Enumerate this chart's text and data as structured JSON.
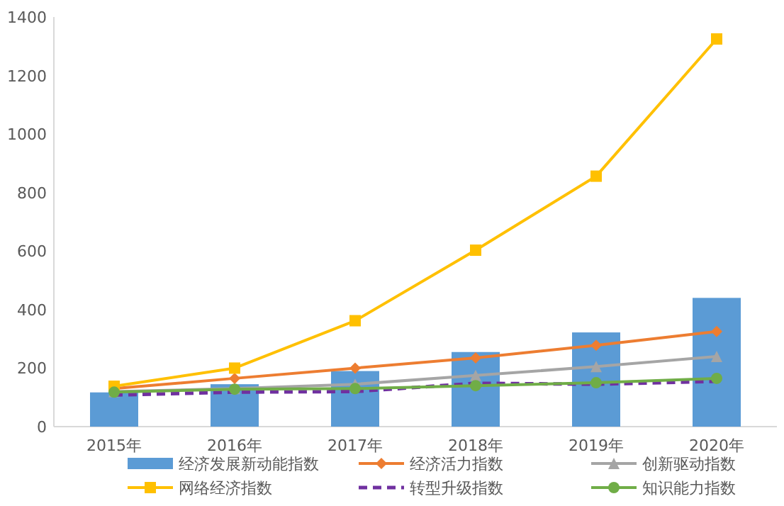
{
  "chart_data": {
    "type": "bar",
    "categories": [
      "2015年",
      "2016年",
      "2017年",
      "2018年",
      "2019年",
      "2020年"
    ],
    "ylim": [
      0,
      1400
    ],
    "yticks": [
      0,
      200,
      400,
      600,
      800,
      1000,
      1200,
      1400
    ],
    "grid": false,
    "legend": "bottom",
    "series": [
      {
        "name": "经济发展新动能指数",
        "color": "#5b9bd5",
        "values": [
          117,
          145,
          190,
          255,
          322,
          440
        ]
      },
      {
        "name": "经济活力指数",
        "type": "line",
        "color": "#ed7d31",
        "marker": "diamond",
        "line_style": "solid",
        "values": [
          130,
          165,
          200,
          235,
          278,
          325
        ]
      },
      {
        "name": "创新驱动指数",
        "type": "line",
        "color": "#a5a5a5",
        "marker": "triangle",
        "line_style": "solid",
        "values": [
          120,
          130,
          145,
          175,
          205,
          240
        ]
      },
      {
        "name": "网络经济指数",
        "type": "line",
        "color": "#ffc000",
        "marker": "square",
        "line_style": "solid",
        "values": [
          138,
          200,
          362,
          603,
          856,
          1325
        ]
      },
      {
        "name": "转型升级指数",
        "type": "line",
        "color": "#7030a0",
        "marker": "none",
        "line_style": "dashed",
        "values": [
          108,
          118,
          120,
          148,
          145,
          155
        ]
      },
      {
        "name": "知识能力指数",
        "type": "line",
        "color": "#70ad47",
        "marker": "circle",
        "line_style": "solid",
        "values": [
          118,
          128,
          130,
          140,
          150,
          165
        ]
      }
    ]
  }
}
